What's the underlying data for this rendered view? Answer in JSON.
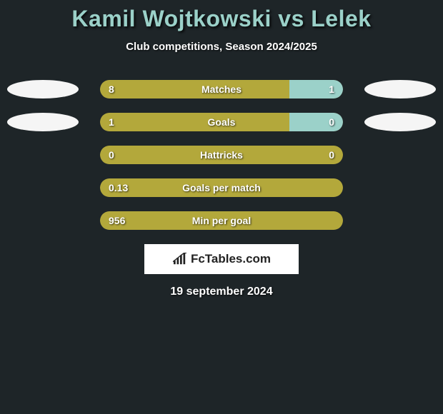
{
  "title_color": "#9bd1c9",
  "background_color": "#1e2528",
  "bar_bg_color": "#7a7337",
  "bar_left_color": "#b3a83b",
  "bar_right_color": "#9bd1c9",
  "avatar_color": "#f5f5f5",
  "title": "Kamil Wojtkowski vs Lelek",
  "subtitle": "Club competitions, Season 2024/2025",
  "rows": [
    {
      "label": "Matches",
      "left_val": "8",
      "right_val": "1",
      "left_pct": 78,
      "right_pct": 22,
      "show_avatars": true
    },
    {
      "label": "Goals",
      "left_val": "1",
      "right_val": "0",
      "left_pct": 78,
      "right_pct": 22,
      "show_avatars": true
    },
    {
      "label": "Hattricks",
      "left_val": "0",
      "right_val": "0",
      "left_pct": 100,
      "right_pct": 0,
      "show_avatars": false
    },
    {
      "label": "Goals per match",
      "left_val": "0.13",
      "right_val": "",
      "left_pct": 100,
      "right_pct": 0,
      "show_avatars": false
    },
    {
      "label": "Min per goal",
      "left_val": "956",
      "right_val": "",
      "left_pct": 100,
      "right_pct": 0,
      "show_avatars": false
    }
  ],
  "logo_text": "FcTables.com",
  "date": "19 september 2024"
}
